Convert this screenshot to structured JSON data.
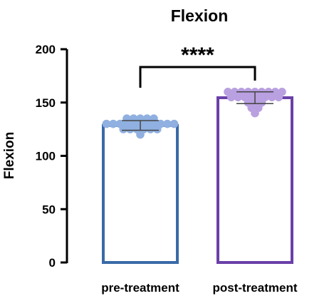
{
  "chart_data": {
    "type": "bar",
    "title": "Flexion",
    "xlabel": "",
    "ylabel": "Flexion",
    "ylim": [
      0,
      200
    ],
    "yticks": [
      0,
      50,
      100,
      150,
      200
    ],
    "grid": false,
    "categories": [
      "pre-treatment",
      "post-treatment"
    ],
    "values": [
      128.5,
      154.5
    ],
    "error": [
      4.5,
      5.5
    ],
    "colors": {
      "pre_bar": "#3a6aa8",
      "pre_points": "#8fb0e0",
      "post_bar": "#6a40a8",
      "post_points": "#b9a0e0"
    },
    "points": [
      [
        130,
        130,
        130,
        130,
        130,
        130,
        135,
        135,
        135,
        135,
        135,
        125,
        125,
        125,
        125,
        125,
        125,
        120,
        130,
        130,
        130,
        130,
        130
      ],
      [
        160,
        160,
        160,
        160,
        160,
        160,
        160,
        155,
        155,
        155,
        155,
        155,
        155,
        155,
        155,
        150,
        150,
        150,
        145,
        145,
        140,
        160,
        160
      ]
    ],
    "annotation": {
      "text": "****",
      "between": [
        "pre-treatment",
        "post-treatment"
      ]
    }
  }
}
